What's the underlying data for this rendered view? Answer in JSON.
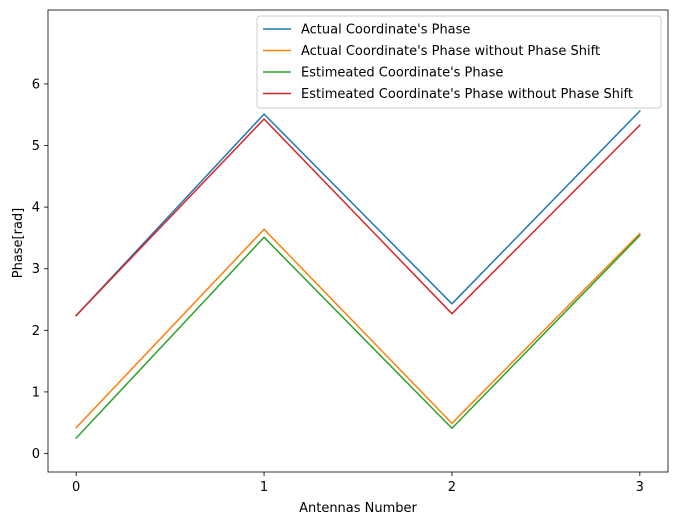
{
  "chart_data": {
    "type": "line",
    "title": "",
    "xlabel": "Antennas Number",
    "ylabel": "Phase[rad]",
    "x": [
      0,
      1,
      2,
      3
    ],
    "xticks": [
      0,
      1,
      2,
      3
    ],
    "yticks": [
      0,
      1,
      2,
      3,
      4,
      5,
      6
    ],
    "xlim": [
      -0.15,
      3.15
    ],
    "ylim": [
      -0.3,
      7.2
    ],
    "grid": false,
    "legend_position": "top-right",
    "series": [
      {
        "name": "Actual Coordinate's Phase",
        "color": "#1f77b4",
        "values": [
          2.24,
          5.51,
          2.43,
          5.56
        ]
      },
      {
        "name": "Actual Coordinate's Phase without Phase Shift",
        "color": "#ff7f0e",
        "values": [
          0.42,
          3.64,
          0.49,
          3.57
        ]
      },
      {
        "name": "Estimeated Coordinate's Phase",
        "color": "#2ca02c",
        "values": [
          0.25,
          3.51,
          0.41,
          3.54
        ]
      },
      {
        "name": "Estimeated Coordinate's Phase without Phase Shift",
        "color": "#d62728",
        "values": [
          2.24,
          5.43,
          2.27,
          5.33
        ]
      }
    ]
  }
}
